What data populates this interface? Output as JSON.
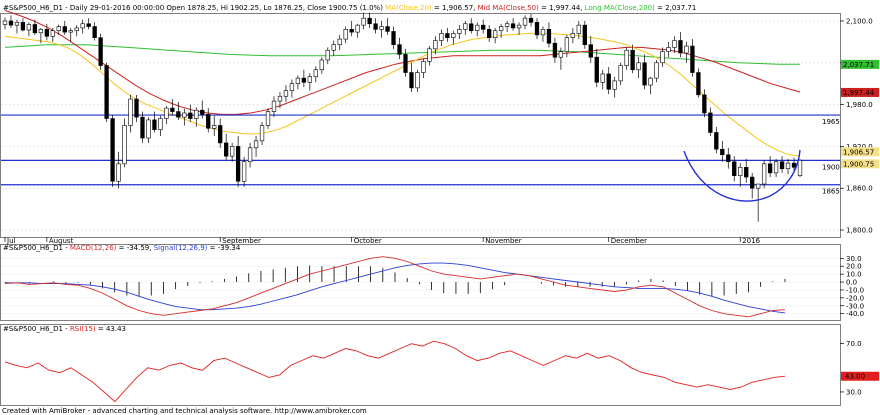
{
  "header": {
    "main_prefix": "#S&P500_H6_D1 - Daily 29-01-2016 00:00:00 Open 1878.25, Hi 1902.25, Lo 1876.25, Close 1900.75 (1.0%)",
    "ma20_label": "MA(Close,20)",
    "ma20_value": " = 1,906.57,",
    "ma50_label": "Mid MA(Close,50)",
    "ma50_value": " = 1,997.44,",
    "ma200_label": "Long MA(Close,200)",
    "ma200_value": " = 2,037.71",
    "macd_prefix": "#S&P500_H6_D1 - ",
    "macd_label": "MACD(12,26)",
    "macd_value": " = -34.59, ",
    "signal_label": "Signal(12,26,9)",
    "signal_value": " = -39.34",
    "rsi_prefix": "#S&P500_H6_D1 - ",
    "rsi_label": "RSI(15)",
    "rsi_value": " = 43.43"
  },
  "footer": "Created with AmiBroker - advanced charting and technical analysis software. http://www.amibroker.com",
  "colors": {
    "up": "#ffffff",
    "down": "#000000",
    "ma20": "#f5c518",
    "ma50": "#cc1f1f",
    "ma200": "#2fbf2f",
    "macd": "#d62b2b",
    "signal": "#2a3fd6",
    "rsi": "#e02020",
    "hline": "#1f2fd0",
    "badge_close": "#f5e08a",
    "badge_ma200": "#18b418",
    "badge_ma50": "#d21f1f",
    "badge_rsi": "#e02020"
  },
  "chart_data": [
    {
      "type": "candlestick",
      "name": "price",
      "x_labels": [
        "Jul",
        "August",
        "September",
        "October",
        "November",
        "December",
        "2016"
      ],
      "y_ticks": [
        "2,100.0",
        "2,040.0",
        "1,980.0",
        "1,920.0",
        "1,860.0",
        "1,800.0"
      ],
      "ylim": [
        1790,
        2110
      ],
      "y_tick_values": [
        2100,
        2040,
        1980,
        1920,
        1860,
        1800
      ],
      "month_index": [
        0,
        7,
        36,
        58,
        80,
        101,
        123
      ],
      "ohlc": [
        [
          2095,
          2105,
          2088,
          2100
        ],
        [
          2100,
          2108,
          2090,
          2094
        ],
        [
          2094,
          2102,
          2082,
          2098
        ],
        [
          2098,
          2104,
          2085,
          2087
        ],
        [
          2087,
          2098,
          2078,
          2095
        ],
        [
          2095,
          2102,
          2080,
          2083
        ],
        [
          2083,
          2090,
          2068,
          2088
        ],
        [
          2088,
          2096,
          2072,
          2078
        ],
        [
          2078,
          2090,
          2070,
          2086
        ],
        [
          2086,
          2095,
          2080,
          2092
        ],
        [
          2092,
          2100,
          2080,
          2084
        ],
        [
          2084,
          2090,
          2070,
          2086
        ],
        [
          2086,
          2094,
          2078,
          2090
        ],
        [
          2090,
          2102,
          2082,
          2096
        ],
        [
          2096,
          2104,
          2088,
          2092
        ],
        [
          2092,
          2098,
          2072,
          2076
        ],
        [
          2076,
          2082,
          2030,
          2036
        ],
        [
          2036,
          2040,
          1955,
          1960
        ],
        [
          1960,
          1965,
          1862,
          1870
        ],
        [
          1870,
          1912,
          1860,
          1895
        ],
        [
          1895,
          1960,
          1890,
          1950
        ],
        [
          1950,
          1994,
          1940,
          1988
        ],
        [
          1988,
          1994,
          1955,
          1962
        ],
        [
          1962,
          1970,
          1925,
          1932
        ],
        [
          1932,
          1962,
          1925,
          1958
        ],
        [
          1958,
          1970,
          1940,
          1944
        ],
        [
          1944,
          1964,
          1935,
          1960
        ],
        [
          1960,
          1978,
          1952,
          1975
        ],
        [
          1975,
          1988,
          1965,
          1970
        ],
        [
          1970,
          1984,
          1958,
          1962
        ],
        [
          1962,
          1974,
          1950,
          1968
        ],
        [
          1968,
          1980,
          1955,
          1960
        ],
        [
          1960,
          1976,
          1948,
          1972
        ],
        [
          1972,
          1986,
          1960,
          1966
        ],
        [
          1966,
          1975,
          1940,
          1946
        ],
        [
          1946,
          1964,
          1935,
          1950
        ],
        [
          1950,
          1960,
          1918,
          1925
        ],
        [
          1925,
          1938,
          1900,
          1906
        ],
        [
          1906,
          1925,
          1898,
          1920
        ],
        [
          1920,
          1935,
          1862,
          1870
        ],
        [
          1870,
          1905,
          1862,
          1898
        ],
        [
          1898,
          1925,
          1890,
          1918
        ],
        [
          1918,
          1935,
          1905,
          1928
        ],
        [
          1928,
          1955,
          1922,
          1950
        ],
        [
          1950,
          1975,
          1945,
          1970
        ],
        [
          1970,
          1992,
          1962,
          1985
        ],
        [
          1985,
          1998,
          1975,
          1992
        ],
        [
          1992,
          2008,
          1984,
          2000
        ],
        [
          2000,
          2016,
          1990,
          2010
        ],
        [
          2010,
          2022,
          2002,
          2018
        ],
        [
          2018,
          2030,
          2005,
          2012
        ],
        [
          2012,
          2025,
          2000,
          2020
        ],
        [
          2020,
          2035,
          2012,
          2030
        ],
        [
          2030,
          2048,
          2024,
          2044
        ],
        [
          2044,
          2062,
          2038,
          2058
        ],
        [
          2058,
          2072,
          2050,
          2066
        ],
        [
          2066,
          2080,
          2058,
          2074
        ],
        [
          2074,
          2092,
          2068,
          2088
        ],
        [
          2088,
          2100,
          2078,
          2084
        ],
        [
          2084,
          2096,
          2076,
          2094
        ],
        [
          2094,
          2112,
          2088,
          2104
        ],
        [
          2104,
          2112,
          2090,
          2096
        ],
        [
          2096,
          2104,
          2082,
          2088
        ],
        [
          2088,
          2100,
          2076,
          2092
        ],
        [
          2092,
          2104,
          2080,
          2085
        ],
        [
          2085,
          2092,
          2060,
          2066
        ],
        [
          2066,
          2076,
          2045,
          2052
        ],
        [
          2052,
          2060,
          2020,
          2026
        ],
        [
          2026,
          2040,
          1998,
          2004
        ],
        [
          2004,
          2030,
          1998,
          2026
        ],
        [
          2026,
          2046,
          2018,
          2042
        ],
        [
          2042,
          2064,
          2036,
          2060
        ],
        [
          2060,
          2078,
          2052,
          2072
        ],
        [
          2072,
          2088,
          2064,
          2082
        ],
        [
          2082,
          2090,
          2070,
          2076
        ],
        [
          2076,
          2086,
          2066,
          2082
        ],
        [
          2082,
          2094,
          2074,
          2088
        ],
        [
          2088,
          2100,
          2080,
          2096
        ],
        [
          2096,
          2104,
          2082,
          2086
        ],
        [
          2086,
          2098,
          2078,
          2094
        ],
        [
          2094,
          2102,
          2082,
          2088
        ],
        [
          2088,
          2094,
          2070,
          2076
        ],
        [
          2076,
          2090,
          2068,
          2086
        ],
        [
          2086,
          2096,
          2076,
          2092
        ],
        [
          2092,
          2100,
          2084,
          2096
        ],
        [
          2096,
          2104,
          2086,
          2090
        ],
        [
          2090,
          2098,
          2080,
          2094
        ],
        [
          2094,
          2108,
          2088,
          2104
        ],
        [
          2104,
          2110,
          2092,
          2098
        ],
        [
          2098,
          2104,
          2074,
          2080
        ],
        [
          2080,
          2092,
          2070,
          2088
        ],
        [
          2088,
          2098,
          2062,
          2068
        ],
        [
          2068,
          2076,
          2040,
          2048
        ],
        [
          2048,
          2062,
          2030,
          2056
        ],
        [
          2056,
          2080,
          2048,
          2076
        ],
        [
          2076,
          2090,
          2068,
          2082
        ],
        [
          2082,
          2100,
          2074,
          2094
        ],
        [
          2094,
          2100,
          2060,
          2066
        ],
        [
          2066,
          2078,
          2040,
          2048
        ],
        [
          2048,
          2060,
          2005,
          2012
        ],
        [
          2012,
          2030,
          2002,
          2024
        ],
        [
          2024,
          2034,
          1995,
          2002
        ],
        [
          2002,
          2020,
          1990,
          2014
        ],
        [
          2014,
          2040,
          2008,
          2036
        ],
        [
          2036,
          2062,
          2030,
          2058
        ],
        [
          2058,
          2066,
          2025,
          2030
        ],
        [
          2030,
          2048,
          2018,
          2040
        ],
        [
          2040,
          2052,
          2002,
          2008
        ],
        [
          2008,
          2020,
          1995,
          2018
        ],
        [
          2018,
          2044,
          2012,
          2040
        ],
        [
          2040,
          2062,
          2034,
          2056
        ],
        [
          2056,
          2070,
          2048,
          2062
        ],
        [
          2062,
          2078,
          2054,
          2072
        ],
        [
          2072,
          2084,
          2048,
          2054
        ],
        [
          2054,
          2070,
          2040,
          2064
        ],
        [
          2064,
          2074,
          2020,
          2026
        ],
        [
          2026,
          2032,
          1990,
          1994
        ],
        [
          1994,
          2002,
          1962,
          1968
        ],
        [
          1968,
          1976,
          1935,
          1940
        ],
        [
          1940,
          1948,
          1910,
          1916
        ],
        [
          1916,
          1928,
          1898,
          1908
        ],
        [
          1908,
          1918,
          1888,
          1898
        ],
        [
          1898,
          1906,
          1870,
          1878
        ],
        [
          1878,
          1896,
          1862,
          1890
        ],
        [
          1890,
          1902,
          1868,
          1876
        ],
        [
          1876,
          1882,
          1845,
          1860
        ],
        [
          1860,
          1866,
          1812,
          1866
        ],
        [
          1866,
          1900,
          1860,
          1895
        ],
        [
          1895,
          1906,
          1876,
          1882
        ],
        [
          1882,
          1902,
          1876,
          1898
        ],
        [
          1898,
          1906,
          1882,
          1888
        ],
        [
          1888,
          1902,
          1880,
          1896
        ],
        [
          1896,
          1904,
          1884,
          1890
        ],
        [
          1878,
          1902,
          1876,
          1900
        ]
      ],
      "ma20": [
        2078,
        2076,
        2074,
        2072,
        2070,
        2066,
        2060,
        2050,
        2038,
        2024,
        2010,
        1998,
        1988,
        1980,
        1974,
        1968,
        1962,
        1956,
        1950,
        1946,
        1942,
        1940,
        1938,
        1938,
        1940,
        1944,
        1950,
        1958,
        1966,
        1974,
        1982,
        1990,
        1998,
        2006,
        2014,
        2022,
        2030,
        2038,
        2046,
        2054,
        2060,
        2066,
        2070,
        2074,
        2076,
        2078,
        2080,
        2081,
        2082,
        2082,
        2082,
        2081,
        2080,
        2078,
        2076,
        2073,
        2070,
        2066,
        2060,
        2054,
        2046,
        2036,
        2024,
        2010,
        1996,
        1982,
        1968,
        1956,
        1944,
        1932,
        1922,
        1914,
        1908,
        1906
      ],
      "ma50": [
        2115,
        2108,
        2100,
        2090,
        2078,
        2064,
        2050,
        2036,
        2022,
        2008,
        1996,
        1986,
        1978,
        1972,
        1968,
        1966,
        1966,
        1968,
        1972,
        1978,
        1986,
        1994,
        2002,
        2010,
        2018,
        2026,
        2032,
        2038,
        2042,
        2046,
        2048,
        2050,
        2050,
        2050,
        2050,
        2050,
        2050,
        2050,
        2052,
        2054,
        2056,
        2058,
        2060,
        2062,
        2062,
        2060,
        2058,
        2054,
        2048,
        2042,
        2034,
        2026,
        2018,
        2010,
        2004,
        1998
      ],
      "ma200": [
        2062,
        2064,
        2066,
        2066,
        2066,
        2064,
        2062,
        2060,
        2058,
        2056,
        2054,
        2052,
        2051,
        2050,
        2050,
        2050,
        2050,
        2051,
        2052,
        2053,
        2054,
        2055,
        2056,
        2057,
        2058,
        2058,
        2058,
        2057,
        2056,
        2054,
        2052,
        2050,
        2048,
        2046,
        2044,
        2042,
        2040,
        2039,
        2038,
        2038
      ],
      "hlines": [
        {
          "label": "1965",
          "value": 1965
        },
        {
          "label": "1900",
          "value": 1900
        },
        {
          "label": "1865",
          "value": 1865
        }
      ],
      "badges": [
        {
          "label": "2,037.71",
          "value": 2037.71,
          "color": "ma200"
        },
        {
          "label": "1,997.44",
          "value": 1997.44,
          "color": "ma50"
        },
        {
          "label": "1,906.57",
          "value": 1906.57,
          "color": "badge_close"
        },
        {
          "label": "1,900.75",
          "value": 1900.75,
          "color": "badge_close"
        }
      ]
    },
    {
      "type": "line",
      "name": "macd",
      "y_ticks": [
        "30.0",
        "20.0",
        "10.0",
        "0.0",
        "-10.0",
        "-20.0",
        "-30.0",
        "-40.0"
      ],
      "y_tick_values": [
        30,
        20,
        10,
        0,
        -10,
        -20,
        -30,
        -40
      ],
      "ylim": [
        -48,
        38
      ],
      "macd": [
        -2,
        -1,
        -3,
        -2,
        -1,
        -3,
        -4,
        -8,
        -14,
        -22,
        -30,
        -36,
        -40,
        -42,
        -40,
        -38,
        -36,
        -34,
        -30,
        -26,
        -20,
        -14,
        -8,
        -2,
        4,
        10,
        14,
        18,
        22,
        26,
        30,
        32,
        30,
        26,
        20,
        14,
        10,
        8,
        6,
        4,
        6,
        8,
        10,
        8,
        4,
        0,
        -4,
        -6,
        -8,
        -10,
        -12,
        -10,
        -6,
        -4,
        -6,
        -14,
        -22,
        -30,
        -36,
        -40,
        -42,
        -44,
        -40,
        -36,
        -35
      ],
      "signal": [
        -1,
        -1,
        -1,
        -2,
        -2,
        -2,
        -3,
        -4,
        -6,
        -9,
        -13,
        -18,
        -23,
        -27,
        -31,
        -33,
        -35,
        -35,
        -34,
        -33,
        -31,
        -28,
        -24,
        -20,
        -16,
        -11,
        -6,
        -2,
        2,
        6,
        10,
        14,
        18,
        21,
        23,
        24,
        24,
        23,
        21,
        18,
        15,
        12,
        10,
        8,
        6,
        4,
        2,
        0,
        -2,
        -4,
        -6,
        -7,
        -8,
        -8,
        -8,
        -9,
        -11,
        -14,
        -18,
        -23,
        -27,
        -31,
        -34,
        -37,
        -39
      ]
    },
    {
      "type": "line",
      "name": "rsi",
      "y_ticks": [
        "70.0",
        "30.0"
      ],
      "y_tick_values": [
        70,
        30
      ],
      "ylim": [
        20,
        78
      ],
      "rsi": [
        55,
        52,
        50,
        54,
        48,
        46,
        50,
        44,
        38,
        30,
        22,
        32,
        42,
        50,
        48,
        52,
        54,
        50,
        48,
        56,
        58,
        54,
        50,
        46,
        42,
        44,
        52,
        56,
        60,
        58,
        62,
        66,
        64,
        60,
        58,
        62,
        66,
        70,
        68,
        72,
        70,
        66,
        60,
        56,
        58,
        62,
        64,
        60,
        56,
        52,
        56,
        60,
        58,
        62,
        58,
        60,
        56,
        50,
        46,
        44,
        42,
        38,
        36,
        34,
        36,
        34,
        32,
        34,
        38,
        40,
        42,
        43
      ]
    }
  ]
}
